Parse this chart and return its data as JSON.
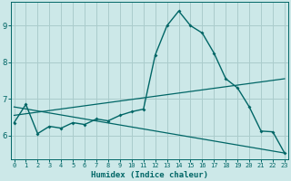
{
  "title": "",
  "xlabel": "Humidex (Indice chaleur)",
  "ylabel": "",
  "bg_color": "#cce8e8",
  "line_color": "#006666",
  "grid_color": "#aacccc",
  "x_ticks": [
    0,
    1,
    2,
    3,
    4,
    5,
    6,
    7,
    8,
    9,
    10,
    11,
    12,
    13,
    14,
    15,
    16,
    17,
    18,
    19,
    20,
    21,
    22,
    23
  ],
  "y_ticks": [
    6,
    7,
    8,
    9
  ],
  "xlim": [
    -0.3,
    23.3
  ],
  "ylim": [
    5.35,
    9.65
  ],
  "curve1_x": [
    0,
    1,
    2,
    3,
    4,
    5,
    6,
    7,
    8,
    9,
    10,
    11,
    12,
    13,
    14,
    15,
    16,
    17,
    18,
    19,
    20,
    21,
    22,
    23
  ],
  "curve1_y": [
    6.35,
    6.85,
    6.05,
    6.25,
    6.2,
    6.35,
    6.3,
    6.45,
    6.4,
    6.55,
    6.65,
    6.72,
    8.2,
    9.0,
    9.4,
    9.0,
    8.8,
    8.25,
    7.55,
    7.3,
    6.78,
    6.12,
    6.1,
    5.52
  ],
  "curve2_x": [
    0,
    23
  ],
  "curve2_y": [
    6.55,
    7.55
  ],
  "curve3_x": [
    0,
    23
  ],
  "curve3_y": [
    6.78,
    5.52
  ]
}
